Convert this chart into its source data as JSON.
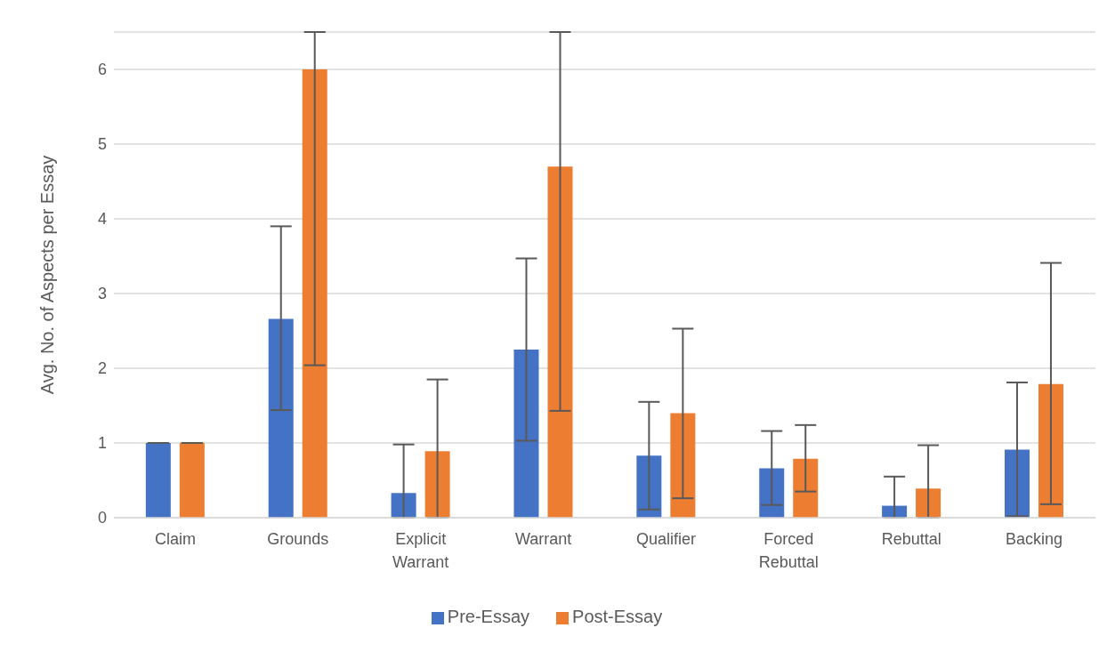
{
  "chart_data": {
    "type": "bar",
    "ylabel": "Avg. No. of Aspects per Essay",
    "categories": [
      "Claim",
      "Grounds",
      "Explicit Warrant",
      "Warrant",
      "Qualifier",
      "Forced Rebuttal",
      "Rebuttal",
      "Backing"
    ],
    "series": [
      {
        "name": "Pre-Essay",
        "color": "#4472c4",
        "values": [
          1,
          2.66,
          0.33,
          2.25,
          0.83,
          0.66,
          0.16,
          0.91
        ],
        "errors": [
          0,
          [
            1.44,
            3.9
          ],
          [
            0,
            0.98
          ],
          [
            1.03,
            3.47
          ],
          [
            0.11,
            1.55
          ],
          [
            0.17,
            1.16
          ],
          [
            0,
            0.55
          ],
          [
            0.02,
            1.81
          ]
        ]
      },
      {
        "name": "Post-Essay",
        "color": "#ed7d31",
        "values": [
          1,
          6,
          0.89,
          4.7,
          1.4,
          0.79,
          0.39,
          1.79
        ],
        "errors": [
          0,
          [
            2.04,
            6.5
          ],
          [
            0,
            1.85
          ],
          [
            1.43,
            6.5
          ],
          [
            0.26,
            2.53
          ],
          [
            0.35,
            1.24
          ],
          [
            0,
            0.97
          ],
          [
            0.18,
            3.41
          ]
        ]
      }
    ],
    "ylim": [
      0,
      6.5
    ],
    "yticks": [
      0,
      1,
      2,
      3,
      4,
      5,
      6
    ],
    "grid": "y",
    "legend": "bottom"
  }
}
